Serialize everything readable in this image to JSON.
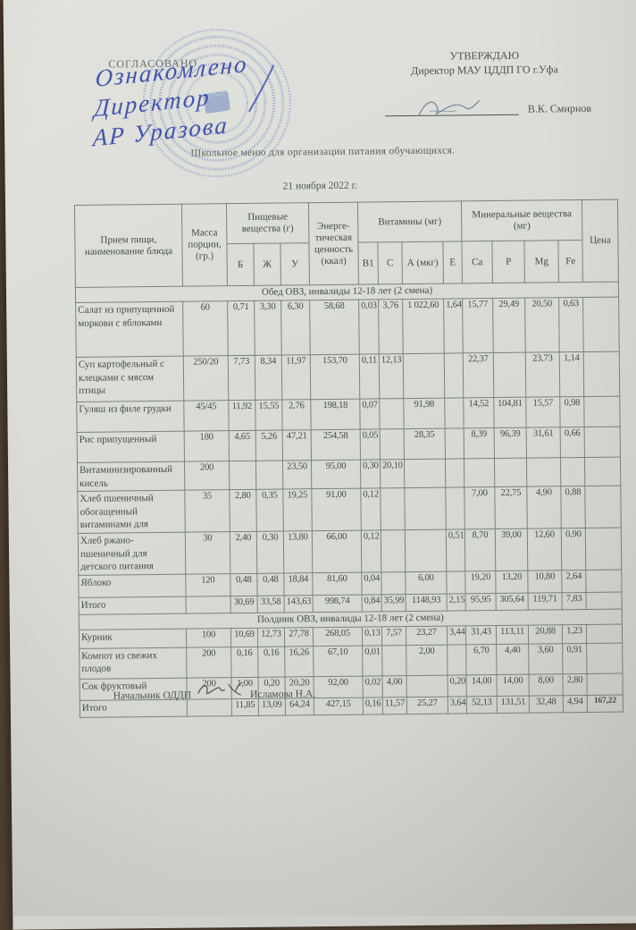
{
  "approval_left": {
    "label": "СОГЛАСОВАНО",
    "handwriting": [
      "Ознакомлено",
      "Директор",
      "АР Уразова"
    ]
  },
  "approval_right": {
    "label": "УТВЕРЖДАЮ",
    "subtitle": "Директор МАУ ЦДДП ГО г.Уфа",
    "signer_name": "В.К. Смирнов"
  },
  "document": {
    "title": "Школьное меню для организации питания обучающихся.",
    "date": "21 ноября 2022 г."
  },
  "footer": {
    "position_label": "Начальник ОДДП",
    "signer_name": "Исламова Н.А."
  },
  "table": {
    "columns": [
      "name",
      "mass",
      "b",
      "zh",
      "u",
      "kcal",
      "v1",
      "c",
      "a",
      "e",
      "ca",
      "p",
      "mg",
      "fe",
      "price"
    ],
    "header": {
      "meal": "Прием пищи, наименование блюда",
      "mass": "Масса порции, (гр.)",
      "nutrients_group": "Пищевые вещества (г)",
      "nutrient_cols": [
        "Б",
        "Ж",
        "У"
      ],
      "energy": "Энерге-тическая ценность (ккал)",
      "vitamins_group": "Витамины (мг)",
      "vitamin_cols": [
        "В1",
        "С",
        "А (мкг)",
        "Е"
      ],
      "minerals_group": "Минеральные вещества (мг)",
      "mineral_cols": [
        "Са",
        "Р",
        "Mg",
        "Fe"
      ],
      "price": "Цена"
    },
    "sections": [
      {
        "title": "Обед ОВЗ, инвалиды 12-18 лет  (2 смена)",
        "rows": [
          {
            "name": "Салат из припущенной моркови с яблоками",
            "mass": "60",
            "b": "0,71",
            "zh": "3,30",
            "u": "6,30",
            "kcal": "58,68",
            "v1": "0,03",
            "c": "3,76",
            "a": "1 022,60",
            "e": "1,64",
            "ca": "15,77",
            "p": "29,49",
            "mg": "20,50",
            "fe": "0,63",
            "price": ""
          },
          {
            "name": "Суп картофельный с клецками с мясом птицы",
            "mass": "250/20",
            "b": "7,73",
            "zh": "8,34",
            "u": "11,97",
            "kcal": "153,70",
            "v1": "0,11",
            "c": "12,13",
            "a": "",
            "e": "",
            "ca": "22,37",
            "p": "",
            "mg": "23,73",
            "fe": "1,14",
            "price": ""
          },
          {
            "name": "Гуляш из филе грудки",
            "mass": "45/45",
            "b": "11,92",
            "zh": "15,55",
            "u": "2,76",
            "kcal": "198,18",
            "v1": "0,07",
            "c": "",
            "a": "91,98",
            "e": "",
            "ca": "14,52",
            "p": "104,81",
            "mg": "15,57",
            "fe": "0,98",
            "price": ""
          },
          {
            "name": "Рис припущенный",
            "mass": "180",
            "b": "4,65",
            "zh": "5,26",
            "u": "47,21",
            "kcal": "254,58",
            "v1": "0,05",
            "c": "",
            "a": "28,35",
            "e": "",
            "ca": "8,39",
            "p": "96,39",
            "mg": "31,61",
            "fe": "0,66",
            "price": ""
          },
          {
            "name": "Витаминизированный кисель",
            "mass": "200",
            "b": "",
            "zh": "",
            "u": "23,50",
            "kcal": "95,00",
            "v1": "0,30",
            "c": "20,10",
            "a": "",
            "e": "",
            "ca": "",
            "p": "",
            "mg": "",
            "fe": "",
            "price": ""
          },
          {
            "name": "Хлеб пшеничный обогащенный витаминами для",
            "mass": "35",
            "b": "2,80",
            "zh": "0,35",
            "u": "19,25",
            "kcal": "91,00",
            "v1": "0,12",
            "c": "",
            "a": "",
            "e": "",
            "ca": "7,00",
            "p": "22,75",
            "mg": "4,90",
            "fe": "0,88",
            "price": ""
          },
          {
            "name": "Хлеб ржано-пшеничный для детского питания",
            "mass": "30",
            "b": "2,40",
            "zh": "0,30",
            "u": "13,80",
            "kcal": "66,00",
            "v1": "0,12",
            "c": "",
            "a": "",
            "e": "0,51",
            "ca": "8,70",
            "p": "39,00",
            "mg": "12,60",
            "fe": "0,90",
            "price": ""
          },
          {
            "name": "Яблоко",
            "mass": "120",
            "b": "0,48",
            "zh": "0,48",
            "u": "18,84",
            "kcal": "81,60",
            "v1": "0,04",
            "c": "",
            "a": "6,00",
            "e": "",
            "ca": "19,20",
            "p": "13,20",
            "mg": "10,80",
            "fe": "2,64",
            "price": ""
          },
          {
            "name": "Итого",
            "is_total": true,
            "mass": "",
            "b": "30,69",
            "zh": "33,58",
            "u": "143,63",
            "kcal": "998,74",
            "v1": "0,84",
            "c": "35,99",
            "a": "1148,93",
            "e": "2,15",
            "ca": "95,95",
            "p": "305,64",
            "mg": "119,71",
            "fe": "7,83",
            "price": ""
          }
        ]
      },
      {
        "title": "Полдник ОВЗ, инвалиды 12-18 лет  (2 смена)",
        "rows": [
          {
            "name": "Курник",
            "mass": "100",
            "b": "10,69",
            "zh": "12,73",
            "u": "27,78",
            "kcal": "268,05",
            "v1": "0,13",
            "c": "7,57",
            "a": "23,27",
            "e": "3,44",
            "ca": "31,43",
            "p": "113,11",
            "mg": "20,88",
            "fe": "1,23",
            "price": ""
          },
          {
            "name": "Компот из свежих плодов",
            "mass": "200",
            "b": "0,16",
            "zh": "0,16",
            "u": "16,26",
            "kcal": "67,10",
            "v1": "0,01",
            "c": "",
            "a": "2,00",
            "e": "",
            "ca": "6,70",
            "p": "4,40",
            "mg": "3,60",
            "fe": "0,91",
            "price": ""
          },
          {
            "name": "Сок фруктовый",
            "mass": "200",
            "b": "1,00",
            "zh": "0,20",
            "u": "20,20",
            "kcal": "92,00",
            "v1": "0,02",
            "c": "4,00",
            "a": "",
            "e": "0,20",
            "ca": "14,00",
            "p": "14,00",
            "mg": "8,00",
            "fe": "2,80",
            "price": ""
          },
          {
            "name": "Итого",
            "is_total": true,
            "mass": "",
            "b": "11,85",
            "zh": "13,09",
            "u": "64,24",
            "kcal": "427,15",
            "v1": "0,16",
            "c": "11,57",
            "a": "25,27",
            "e": "3,64",
            "ca": "52,13",
            "p": "131,51",
            "mg": "32,48",
            "fe": "4,94",
            "price": "167,22",
            "price_bold": true
          }
        ]
      }
    ]
  }
}
